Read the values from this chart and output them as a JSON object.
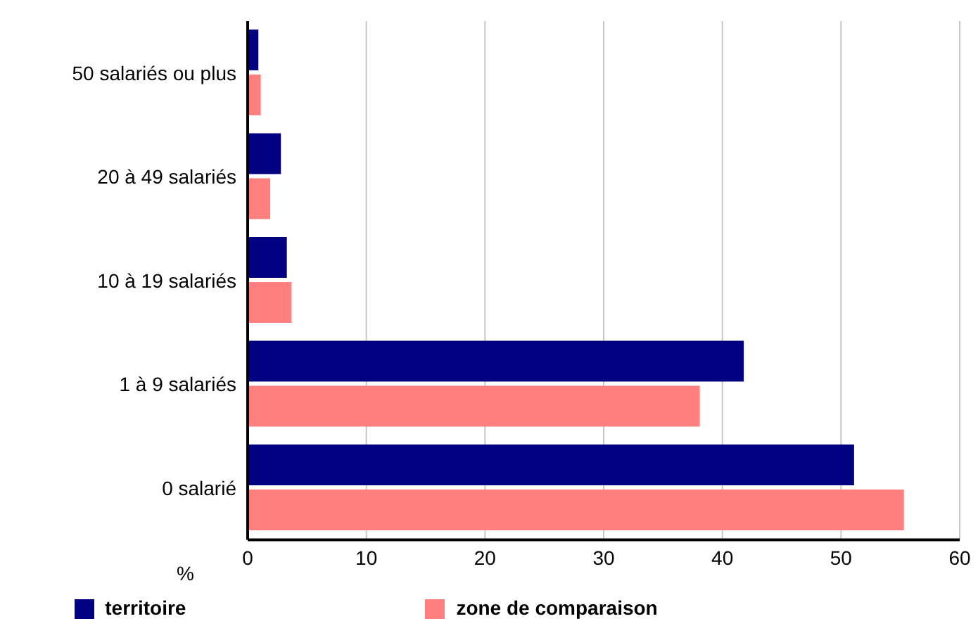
{
  "chart_data": {
    "type": "bar",
    "orientation": "horizontal",
    "xlabel": "%",
    "categories": [
      "50 salariés ou plus",
      "20 à 49 salariés",
      "10 à 19 salariés",
      "1 à 9 salariés",
      "0 salarié"
    ],
    "series": [
      {
        "name": "territoire",
        "color": "#000080",
        "values": [
          0.9,
          2.8,
          3.3,
          41.8,
          51.1
        ]
      },
      {
        "name": "zone de comparaison",
        "color": "#ff7f7f",
        "values": [
          1.1,
          1.9,
          3.7,
          38.1,
          55.3
        ]
      }
    ],
    "xlim": [
      0,
      60
    ],
    "xticks": [
      0,
      10,
      20,
      30,
      40,
      50,
      60
    ],
    "grid": "x",
    "legend": "bottom"
  }
}
